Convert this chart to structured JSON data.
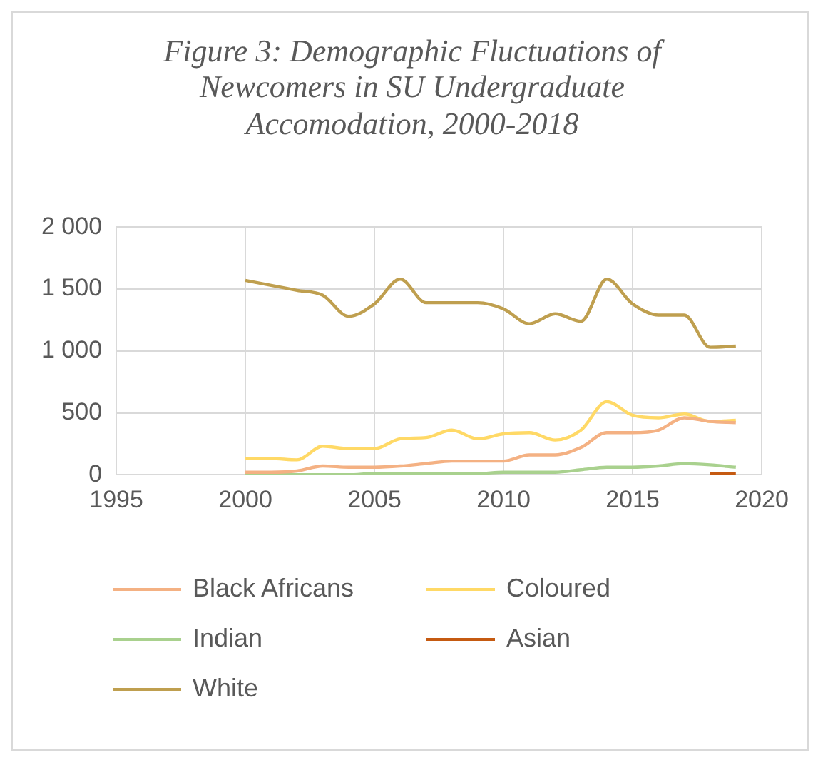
{
  "chart_data": {
    "type": "line",
    "title": "Figure 3: Demographic Fluctuations of Newcomers in SU Undergraduate Accomodation, 2000-2018",
    "x": [
      2000,
      2001,
      2002,
      2003,
      2004,
      2005,
      2006,
      2007,
      2008,
      2009,
      2010,
      2011,
      2012,
      2013,
      2014,
      2015,
      2016,
      2017,
      2018,
      2019
    ],
    "series": [
      {
        "name": "Black Africans",
        "color": "#f4b183",
        "values": [
          20,
          20,
          30,
          70,
          60,
          60,
          70,
          90,
          110,
          110,
          110,
          160,
          160,
          220,
          340,
          340,
          360,
          460,
          430,
          420
        ]
      },
      {
        "name": "Coloured",
        "color": "#ffd966",
        "values": [
          130,
          130,
          120,
          230,
          210,
          210,
          290,
          300,
          360,
          290,
          330,
          340,
          280,
          360,
          590,
          480,
          460,
          490,
          430,
          440
        ]
      },
      {
        "name": "Indian",
        "color": "#a9d18e",
        "values": [
          0,
          0,
          0,
          0,
          0,
          10,
          10,
          10,
          10,
          10,
          20,
          20,
          20,
          40,
          60,
          60,
          70,
          90,
          80,
          60
        ]
      },
      {
        "name": "Asian",
        "color": "#c55a11",
        "values": [
          null,
          null,
          null,
          null,
          null,
          null,
          null,
          null,
          null,
          null,
          null,
          null,
          null,
          null,
          null,
          null,
          null,
          null,
          10,
          10
        ]
      },
      {
        "name": "White",
        "color": "#bf9f4f",
        "values": [
          1570,
          1530,
          1490,
          1450,
          1280,
          1380,
          1580,
          1390,
          1390,
          1390,
          1340,
          1220,
          1300,
          1240,
          1580,
          1380,
          1290,
          1290,
          1030,
          1040
        ]
      }
    ],
    "xlim": [
      1995,
      2020
    ],
    "xticks": [
      1995,
      2000,
      2005,
      2010,
      2015,
      2020
    ],
    "ylim": [
      0,
      2000
    ],
    "yticks": [
      0,
      500,
      {
        "value": 1000,
        "label": "1 000"
      },
      {
        "value": 1500,
        "label": "1 500"
      },
      {
        "value": 2000,
        "label": "2 000"
      }
    ],
    "grid": true,
    "legend": "bottom",
    "marker": "none",
    "line_style": "solid"
  }
}
